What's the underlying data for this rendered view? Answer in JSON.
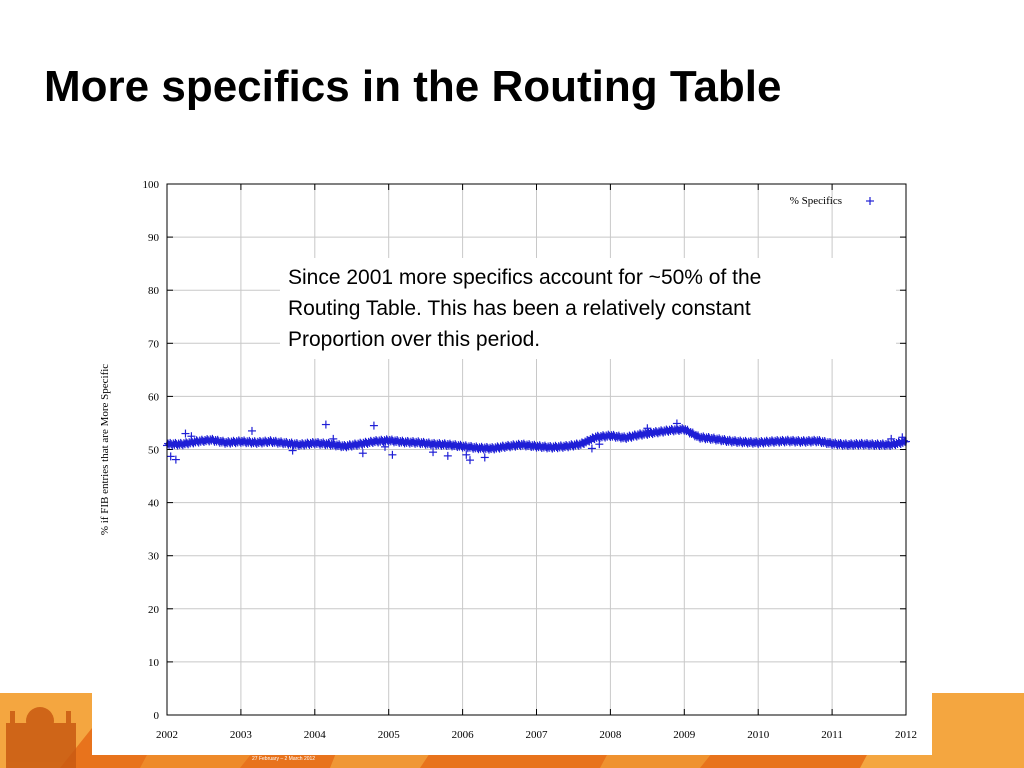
{
  "slide": {
    "title": "More specifics in the Routing Table",
    "annotation": "Since 2001 more specifics account for ~50% of the\nRouting Table. This has been a relatively constant\nProportion over this period.",
    "footer_date": "27 February – 2 March 2012",
    "colors": {
      "banner_orange": "#e8731c",
      "banner_light": "#f4a640",
      "series": "#1f1fd6"
    }
  },
  "chart_data": {
    "type": "scatter",
    "title": "",
    "xlabel": "",
    "ylabel": "% if FIB entries that are More Specific",
    "xlim": [
      2002,
      2012
    ],
    "ylim": [
      0,
      100
    ],
    "x_ticks": [
      "2002",
      "2003",
      "2004",
      "2005",
      "2006",
      "2007",
      "2008",
      "2009",
      "2010",
      "2011",
      "2012"
    ],
    "y_ticks": [
      "0",
      "10",
      "20",
      "30",
      "40",
      "50",
      "60",
      "70",
      "80",
      "90",
      "100"
    ],
    "grid": true,
    "legend": "top-right",
    "marker": "+",
    "series": [
      {
        "name": "% Specifics",
        "x": [
          2002.0,
          2002.2,
          2002.4,
          2002.6,
          2002.8,
          2003.0,
          2003.2,
          2003.4,
          2003.6,
          2003.8,
          2004.0,
          2004.2,
          2004.4,
          2004.6,
          2004.8,
          2005.0,
          2005.2,
          2005.4,
          2005.6,
          2005.8,
          2006.0,
          2006.2,
          2006.4,
          2006.6,
          2006.8,
          2007.0,
          2007.2,
          2007.4,
          2007.6,
          2007.8,
          2008.0,
          2008.2,
          2008.4,
          2008.6,
          2008.8,
          2009.0,
          2009.2,
          2009.4,
          2009.6,
          2009.8,
          2010.0,
          2010.2,
          2010.4,
          2010.6,
          2010.8,
          2011.0,
          2011.2,
          2011.4,
          2011.6,
          2011.8,
          2012.0
        ],
        "y": [
          51.0,
          51.0,
          51.5,
          51.8,
          51.3,
          51.5,
          51.3,
          51.5,
          51.2,
          50.9,
          51.2,
          51.0,
          50.6,
          51.0,
          51.5,
          51.7,
          51.4,
          51.3,
          51.0,
          50.9,
          50.6,
          50.3,
          50.2,
          50.6,
          50.9,
          50.6,
          50.4,
          50.6,
          51.0,
          52.3,
          52.6,
          52.2,
          52.8,
          53.2,
          53.6,
          53.8,
          52.3,
          52.0,
          51.6,
          51.4,
          51.3,
          51.5,
          51.6,
          51.5,
          51.6,
          51.1,
          50.9,
          51.0,
          50.9,
          50.9,
          51.5
        ]
      }
    ],
    "outliers": {
      "x": [
        2002.05,
        2002.12,
        2002.25,
        2002.33,
        2003.15,
        2003.7,
        2004.15,
        2004.25,
        2004.65,
        2004.8,
        2004.95,
        2005.05,
        2005.6,
        2005.8,
        2006.05,
        2006.1,
        2006.3,
        2007.75,
        2007.85,
        2008.5,
        2008.9,
        2011.8,
        2011.95
      ],
      "y": [
        48.7,
        48.1,
        53.0,
        52.5,
        53.5,
        49.8,
        54.7,
        52.0,
        49.3,
        54.5,
        50.5,
        49.0,
        49.5,
        48.8,
        49.0,
        48.0,
        48.5,
        50.2,
        51.0,
        54.0,
        54.9,
        52.0,
        52.3
      ]
    }
  }
}
